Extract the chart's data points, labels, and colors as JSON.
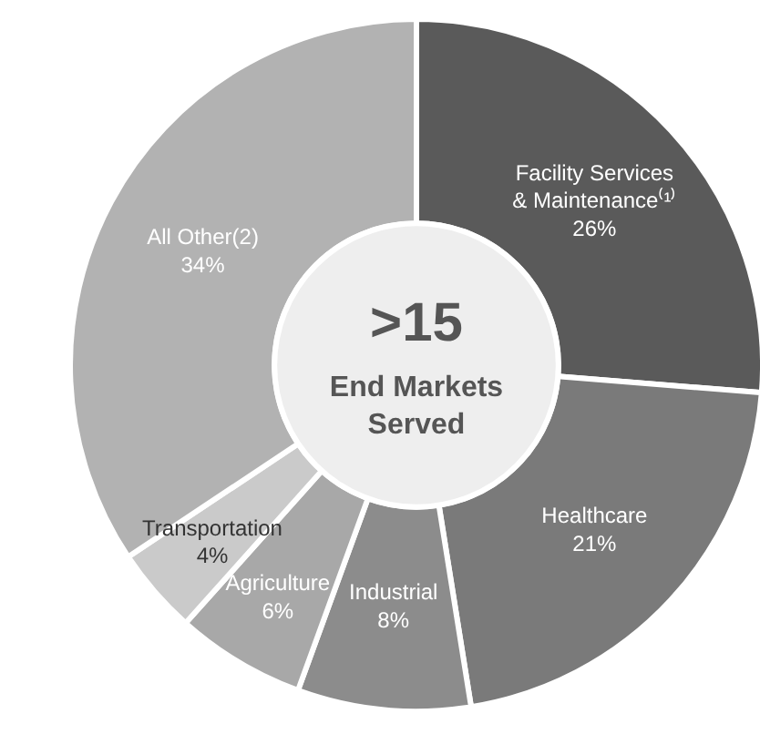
{
  "chart_data": {
    "type": "donut",
    "title": ">15",
    "subtitle": "End Markets Served",
    "categories": [
      "Facility Services & Maintenance⁽¹⁾",
      "Healthcare",
      "Industrial",
      "Agriculture",
      "Transportation",
      "All Other(2)"
    ],
    "values": [
      26,
      21,
      8,
      6,
      4,
      34
    ],
    "value_labels": [
      "26%",
      "21%",
      "8%",
      "6%",
      "4%",
      "34%"
    ],
    "colors": [
      "#5a5a5a",
      "#7a7a7a",
      "#8c8c8c",
      "#a8a8a8",
      "#cacaca",
      "#b2b2b2"
    ]
  }
}
